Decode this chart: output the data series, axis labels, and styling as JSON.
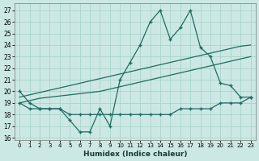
{
  "xlabel": "Humidex (Indice chaleur)",
  "bg_color": "#cce8e4",
  "grid_color": "#aad4ca",
  "line_color": "#1e6b62",
  "hours": [
    0,
    1,
    2,
    3,
    4,
    5,
    6,
    7,
    8,
    9,
    10,
    11,
    12,
    13,
    14,
    15,
    16,
    17,
    18,
    19,
    20,
    21,
    22,
    23
  ],
  "main_line": [
    20,
    19,
    18.5,
    18.5,
    18.5,
    17.5,
    16.5,
    16.5,
    18.5,
    17.0,
    21.0,
    22.5,
    24.0,
    26.0,
    27.0,
    24.5,
    25.5,
    27.0,
    23.8,
    23.0,
    20.7,
    20.5,
    19.5,
    19.5
  ],
  "trend_high": [
    19.5,
    19.7,
    19.9,
    20.1,
    20.3,
    20.5,
    20.7,
    20.9,
    21.1,
    21.3,
    21.5,
    21.7,
    21.9,
    22.1,
    22.3,
    22.5,
    22.7,
    22.9,
    23.1,
    23.3,
    23.5,
    23.7,
    23.9,
    24.0
  ],
  "trend_mid": [
    19.0,
    19.2,
    19.4,
    19.5,
    19.6,
    19.7,
    19.8,
    19.9,
    20.0,
    20.2,
    20.4,
    20.6,
    20.8,
    21.0,
    21.2,
    21.4,
    21.6,
    21.8,
    22.0,
    22.2,
    22.4,
    22.6,
    22.8,
    23.0
  ],
  "flat_line": [
    19.0,
    18.5,
    18.5,
    18.5,
    18.5,
    18.0,
    18.0,
    18.0,
    18.0,
    18.0,
    18.0,
    18.0,
    18.0,
    18.0,
    18.0,
    18.0,
    18.5,
    18.5,
    18.5,
    18.5,
    19.0,
    19.0,
    19.0,
    19.5
  ],
  "ylim": [
    15.8,
    27.6
  ],
  "xlim": [
    -0.5,
    23.5
  ],
  "yticks": [
    16,
    17,
    18,
    19,
    20,
    21,
    22,
    23,
    24,
    25,
    26,
    27
  ],
  "xticks": [
    0,
    1,
    2,
    3,
    4,
    5,
    6,
    7,
    8,
    9,
    10,
    11,
    12,
    13,
    14,
    15,
    16,
    17,
    18,
    19,
    20,
    21,
    22,
    23
  ]
}
